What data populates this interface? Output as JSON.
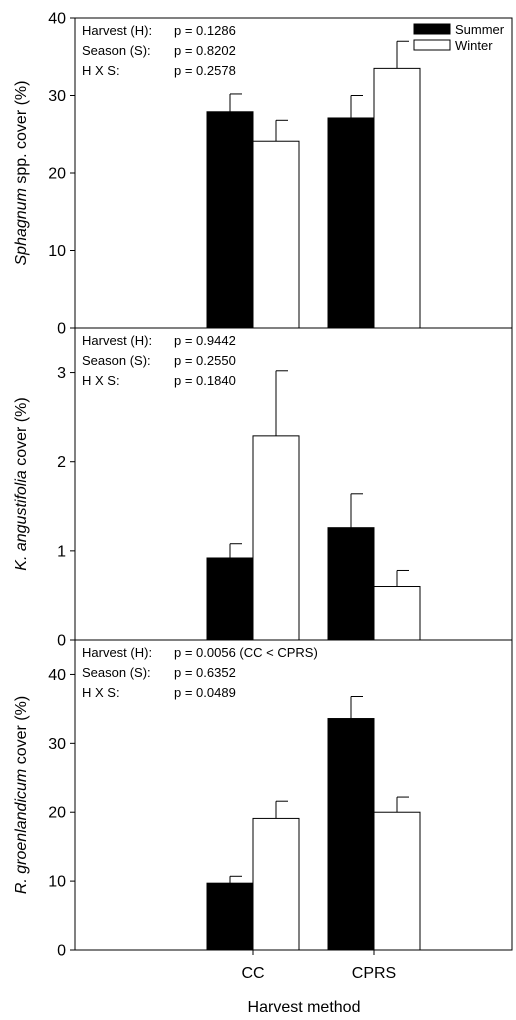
{
  "figure": {
    "xlabel": "Harvest method",
    "legend": [
      {
        "label": "Summer",
        "color": "#000000"
      },
      {
        "label": "Winter",
        "color": "#ffffff"
      }
    ]
  },
  "chart_data": [
    {
      "type": "bar",
      "categories": [
        "CC",
        "CPRS"
      ],
      "series": [
        {
          "name": "Summer",
          "values": [
            27.9,
            27.1
          ],
          "errors": [
            2.3,
            2.9
          ]
        },
        {
          "name": "Winter",
          "values": [
            24.1,
            33.5
          ],
          "errors": [
            2.7,
            3.5
          ]
        }
      ],
      "ylabel_italic": "Sphagnum",
      "ylabel_rest": " spp. cover (%)",
      "ylim": [
        0,
        40
      ],
      "yticks": [
        0,
        10,
        20,
        30,
        40
      ],
      "stats": [
        {
          "label": "Harvest (H):",
          "value": "p = 0.1286"
        },
        {
          "label": "Season (S):",
          "value": "p = 0.8202"
        },
        {
          "label": "H X S:",
          "value": "p = 0.2578"
        }
      ],
      "legend_shown": true
    },
    {
      "type": "bar",
      "categories": [
        "CC",
        "CPRS"
      ],
      "series": [
        {
          "name": "Summer",
          "values": [
            0.92,
            1.26
          ],
          "errors": [
            0.16,
            0.38
          ]
        },
        {
          "name": "Winter",
          "values": [
            2.29,
            0.6
          ],
          "errors": [
            0.73,
            0.18
          ]
        }
      ],
      "ylabel_italic": "K. angustifolia",
      "ylabel_rest": " cover (%)",
      "ylim": [
        0,
        3.5
      ],
      "yticks": [
        0,
        1,
        2,
        3
      ],
      "stats": [
        {
          "label": "Harvest (H):",
          "value": "p = 0.9442"
        },
        {
          "label": "Season (S):",
          "value": "p = 0.2550"
        },
        {
          "label": "H X S:",
          "value": "p = 0.1840"
        }
      ],
      "legend_shown": false
    },
    {
      "type": "bar",
      "categories": [
        "CC",
        "CPRS"
      ],
      "series": [
        {
          "name": "Summer",
          "values": [
            9.7,
            33.6
          ],
          "errors": [
            1.0,
            3.2
          ]
        },
        {
          "name": "Winter",
          "values": [
            19.1,
            20.0
          ],
          "errors": [
            2.5,
            2.2
          ]
        }
      ],
      "ylabel_italic": "R. groenlandicum",
      "ylabel_rest": " cover (%)",
      "ylim": [
        0,
        45
      ],
      "yticks": [
        0,
        10,
        20,
        30,
        40
      ],
      "stats": [
        {
          "label": "Harvest (H):",
          "value": "p = 0.0056 (CC < CPRS)"
        },
        {
          "label": "Season (S):",
          "value": "p = 0.6352"
        },
        {
          "label": "H X S:",
          "value": "p = 0.0489"
        }
      ],
      "legend_shown": false
    }
  ]
}
